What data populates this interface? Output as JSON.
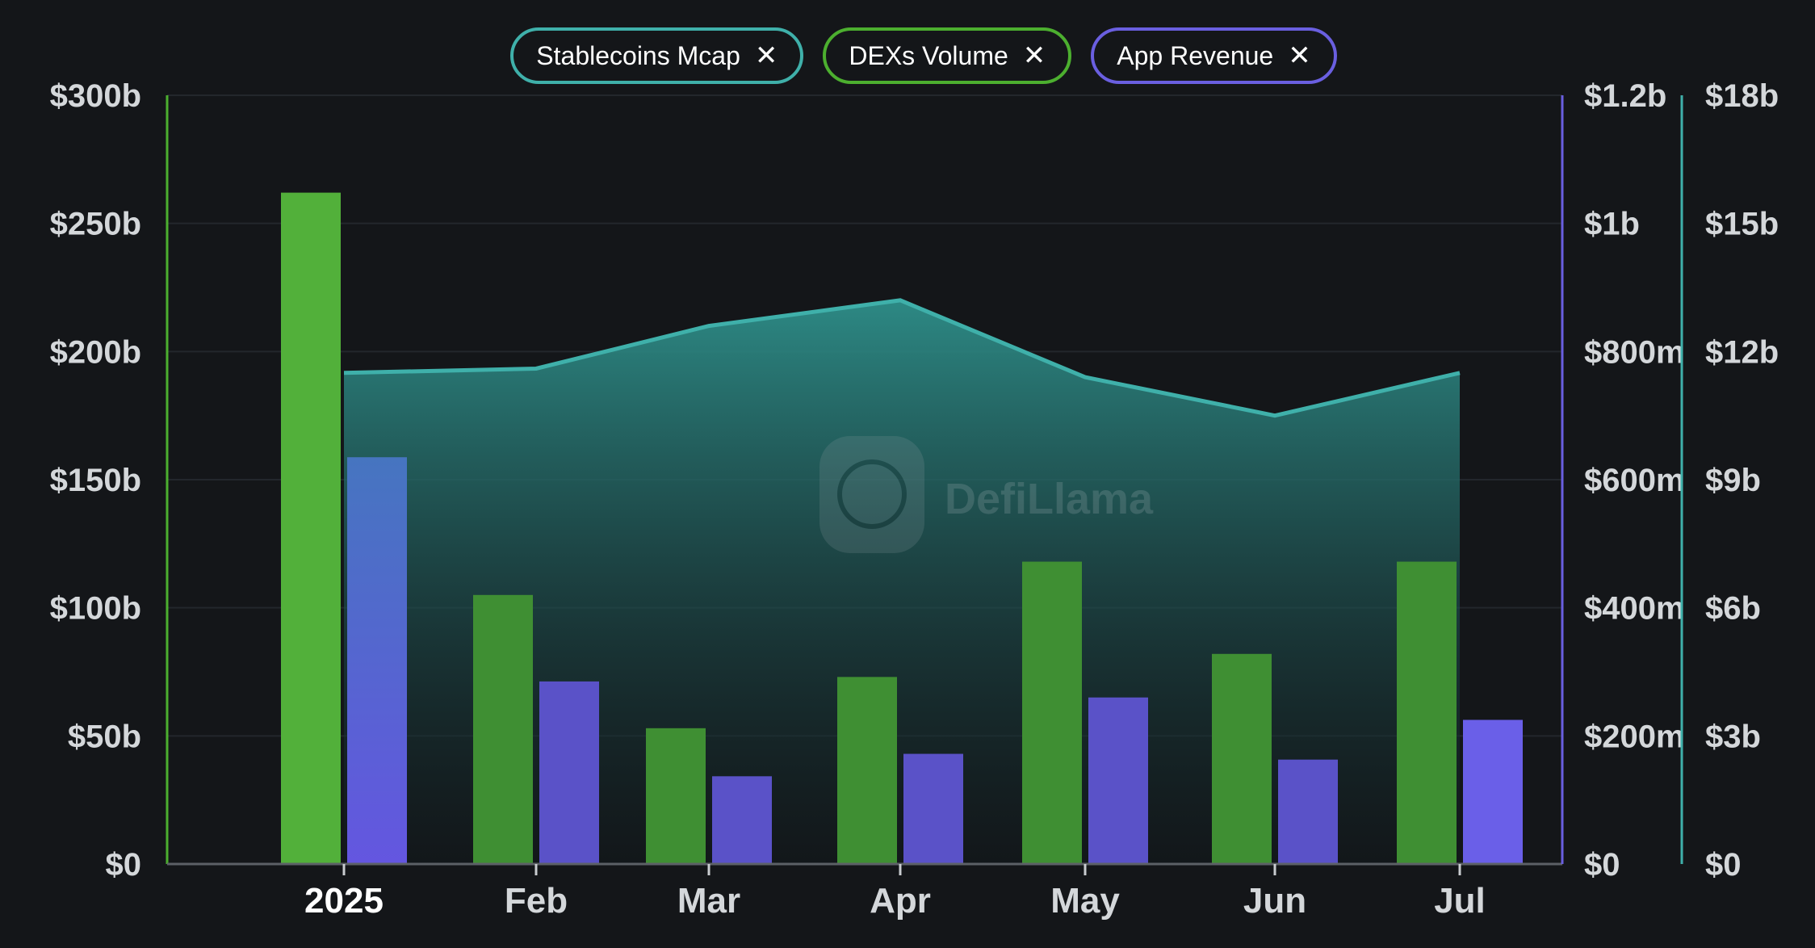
{
  "legend": {
    "items": [
      {
        "label": "Stablecoins Mcap",
        "color": "#3fb0aa",
        "close_icon": "close-icon"
      },
      {
        "label": "DEXs Volume",
        "color": "#4caf2f",
        "close_icon": "close-icon"
      },
      {
        "label": "App Revenue",
        "color": "#6a5fe0",
        "close_icon": "close-icon"
      }
    ]
  },
  "watermark": "DefiLlama",
  "chart_data": {
    "type": "bar",
    "categories": [
      "2025",
      "Feb",
      "Mar",
      "Apr",
      "May",
      "Jun",
      "Jul"
    ],
    "axes": {
      "left": {
        "ticks": [
          "$0",
          "$50b",
          "$100b",
          "$150b",
          "$200b",
          "$250b",
          "$300b"
        ],
        "ylim": [
          0,
          300
        ],
        "unit": "b"
      },
      "right_1": {
        "ticks": [
          "$0",
          "$200m",
          "$400m",
          "$600m",
          "$800m",
          "$1b",
          "$1.2b"
        ],
        "ylim": [
          0,
          1200
        ],
        "unit": "m"
      },
      "right_2": {
        "ticks": [
          "$0",
          "$3b",
          "$6b",
          "$9b",
          "$12b",
          "$15b",
          "$18b"
        ],
        "ylim": [
          0,
          18
        ],
        "unit": "b"
      }
    },
    "series": [
      {
        "name": "DEXs Volume",
        "type": "bar",
        "axis": "left",
        "color": "#4caf2f",
        "values": [
          262,
          105,
          53,
          73,
          118,
          82,
          118
        ]
      },
      {
        "name": "App Revenue",
        "type": "bar",
        "axis": "right_1",
        "color": "#6a5fe0",
        "values": [
          635,
          285,
          137,
          172,
          260,
          163,
          225
        ]
      },
      {
        "name": "Stablecoins Mcap",
        "type": "area",
        "axis": "right_2",
        "color": "#3fb0aa",
        "values": [
          11.5,
          11.6,
          12.6,
          13.2,
          11.4,
          10.5,
          11.5
        ]
      }
    ],
    "grid": true
  }
}
